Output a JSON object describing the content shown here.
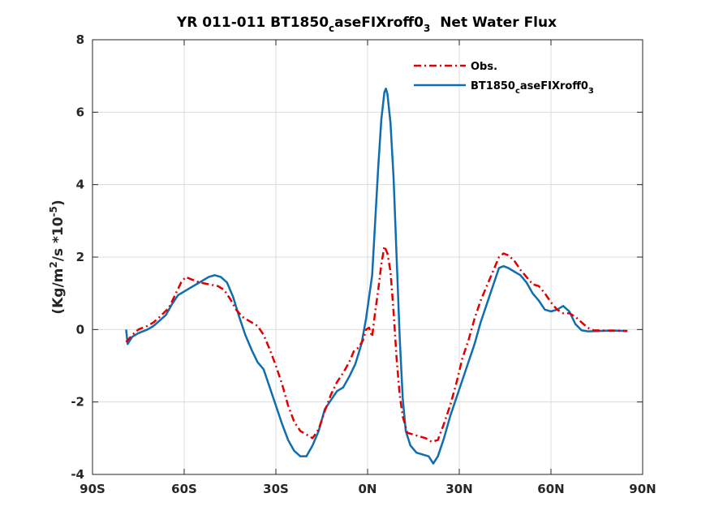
{
  "chart_data": {
    "type": "line",
    "title": {
      "prefix": "YR 011-011 BT1850",
      "sub1": "c",
      "mid": "aseFIXroff0",
      "sub2": "3",
      "suffix": "  Net Water Flux"
    },
    "xlabel": "",
    "ylabel": {
      "p1": "(Kg/m",
      "sup1": "2",
      "p2": "/s *10",
      "sup2": "-5",
      "p3": ")"
    },
    "xlim": [
      -90,
      90
    ],
    "ylim": [
      -4,
      8
    ],
    "x_ticks": [
      -90,
      -60,
      -30,
      0,
      30,
      60,
      90
    ],
    "x_tick_labels": [
      "90S",
      "60S",
      "30S",
      "0N",
      "30N",
      "60N",
      "90N"
    ],
    "y_ticks": [
      -4,
      -2,
      0,
      2,
      4,
      6,
      8
    ],
    "y_tick_labels": [
      "-4",
      "-2",
      "0",
      "2",
      "4",
      "6",
      "8"
    ],
    "grid": true,
    "legend_position": "top-right",
    "colors": {
      "obs": "#e00000",
      "model": "#0f6db0",
      "axis": "#262626",
      "grid": "#dcdcdc"
    },
    "series": [
      {
        "name": "Obs.",
        "style": "dashdot",
        "points": [
          [
            -79,
            -0.35
          ],
          [
            -77,
            -0.15
          ],
          [
            -75,
            0.0
          ],
          [
            -72,
            0.1
          ],
          [
            -70,
            0.2
          ],
          [
            -68,
            0.35
          ],
          [
            -65,
            0.6
          ],
          [
            -63,
            0.95
          ],
          [
            -61,
            1.3
          ],
          [
            -59.5,
            1.45
          ],
          [
            -57.5,
            1.38
          ],
          [
            -55,
            1.3
          ],
          [
            -52,
            1.25
          ],
          [
            -49,
            1.2
          ],
          [
            -47,
            1.1
          ],
          [
            -45,
            0.85
          ],
          [
            -43,
            0.55
          ],
          [
            -41,
            0.35
          ],
          [
            -39,
            0.25
          ],
          [
            -36,
            0.1
          ],
          [
            -34,
            -0.15
          ],
          [
            -32,
            -0.55
          ],
          [
            -30,
            -1.0
          ],
          [
            -28,
            -1.5
          ],
          [
            -26,
            -2.1
          ],
          [
            -24,
            -2.55
          ],
          [
            -22,
            -2.8
          ],
          [
            -20,
            -2.9
          ],
          [
            -18,
            -3.0
          ],
          [
            -16,
            -2.75
          ],
          [
            -14,
            -2.25
          ],
          [
            -12,
            -1.8
          ],
          [
            -10,
            -1.45
          ],
          [
            -8,
            -1.2
          ],
          [
            -6,
            -0.9
          ],
          [
            -4.5,
            -0.6
          ],
          [
            -3,
            -0.5
          ],
          [
            -1.5,
            -0.3
          ],
          [
            -0.5,
            0.0
          ],
          [
            0.5,
            0.05
          ],
          [
            1.5,
            -0.2
          ],
          [
            2.5,
            0.5
          ],
          [
            3.5,
            1.1
          ],
          [
            4.5,
            1.8
          ],
          [
            5.5,
            2.3
          ],
          [
            6.5,
            2.1
          ],
          [
            7.5,
            1.6
          ],
          [
            8.5,
            0.5
          ],
          [
            9.5,
            -0.8
          ],
          [
            10.5,
            -1.8
          ],
          [
            11.5,
            -2.4
          ],
          [
            13,
            -2.85
          ],
          [
            15,
            -2.9
          ],
          [
            17,
            -2.95
          ],
          [
            19,
            -3.0
          ],
          [
            21,
            -3.1
          ],
          [
            23,
            -3.05
          ],
          [
            25,
            -2.6
          ],
          [
            27,
            -2.1
          ],
          [
            29,
            -1.5
          ],
          [
            31,
            -0.8
          ],
          [
            33,
            -0.3
          ],
          [
            35,
            0.3
          ],
          [
            37,
            0.8
          ],
          [
            39,
            1.2
          ],
          [
            41,
            1.6
          ],
          [
            43,
            2.0
          ],
          [
            44.5,
            2.1
          ],
          [
            46,
            2.05
          ],
          [
            48,
            1.9
          ],
          [
            50,
            1.65
          ],
          [
            52,
            1.45
          ],
          [
            54,
            1.25
          ],
          [
            56,
            1.2
          ],
          [
            58,
            1.0
          ],
          [
            60,
            0.75
          ],
          [
            62,
            0.55
          ],
          [
            64,
            0.45
          ],
          [
            66,
            0.45
          ],
          [
            68,
            0.35
          ],
          [
            70,
            0.2
          ],
          [
            72,
            0.05
          ],
          [
            74,
            -0.02
          ],
          [
            78,
            -0.03
          ],
          [
            82,
            -0.03
          ],
          [
            85,
            -0.04
          ]
        ]
      },
      {
        "name": "BT1850",
        "name_sub1": "c",
        "name_mid": "aseFIXroff0",
        "name_sub2": "3",
        "style": "solid",
        "points": [
          [
            -79,
            0.0
          ],
          [
            -78.5,
            -0.4
          ],
          [
            -77,
            -0.2
          ],
          [
            -75,
            -0.1
          ],
          [
            -72,
            0.0
          ],
          [
            -70,
            0.1
          ],
          [
            -68,
            0.25
          ],
          [
            -66,
            0.4
          ],
          [
            -64,
            0.7
          ],
          [
            -62,
            0.95
          ],
          [
            -60,
            1.05
          ],
          [
            -58,
            1.15
          ],
          [
            -56,
            1.25
          ],
          [
            -54,
            1.35
          ],
          [
            -52,
            1.45
          ],
          [
            -50,
            1.5
          ],
          [
            -48,
            1.45
          ],
          [
            -46,
            1.3
          ],
          [
            -44,
            0.9
          ],
          [
            -42,
            0.35
          ],
          [
            -40,
            -0.15
          ],
          [
            -38,
            -0.55
          ],
          [
            -36,
            -0.9
          ],
          [
            -34,
            -1.1
          ],
          [
            -32,
            -1.6
          ],
          [
            -30,
            -2.1
          ],
          [
            -28,
            -2.6
          ],
          [
            -26,
            -3.05
          ],
          [
            -24,
            -3.35
          ],
          [
            -22,
            -3.5
          ],
          [
            -20,
            -3.5
          ],
          [
            -18,
            -3.2
          ],
          [
            -16,
            -2.8
          ],
          [
            -14,
            -2.2
          ],
          [
            -12,
            -1.95
          ],
          [
            -10,
            -1.7
          ],
          [
            -8,
            -1.6
          ],
          [
            -6,
            -1.3
          ],
          [
            -4,
            -0.95
          ],
          [
            -2,
            -0.4
          ],
          [
            -0.5,
            0.3
          ],
          [
            0.5,
            0.9
          ],
          [
            1.5,
            1.5
          ],
          [
            2.5,
            3.0
          ],
          [
            3.5,
            4.5
          ],
          [
            4.5,
            5.8
          ],
          [
            5.5,
            6.55
          ],
          [
            6,
            6.65
          ],
          [
            6.5,
            6.5
          ],
          [
            7.5,
            5.7
          ],
          [
            8.5,
            4.2
          ],
          [
            9.5,
            2.0
          ],
          [
            10.5,
            -0.2
          ],
          [
            11.5,
            -1.9
          ],
          [
            12.5,
            -2.8
          ],
          [
            14,
            -3.2
          ],
          [
            16,
            -3.4
          ],
          [
            18,
            -3.45
          ],
          [
            20,
            -3.5
          ],
          [
            21.5,
            -3.7
          ],
          [
            23,
            -3.5
          ],
          [
            25,
            -3.0
          ],
          [
            27,
            -2.4
          ],
          [
            29,
            -1.9
          ],
          [
            31,
            -1.4
          ],
          [
            33,
            -0.9
          ],
          [
            35,
            -0.4
          ],
          [
            37,
            0.2
          ],
          [
            39,
            0.7
          ],
          [
            41,
            1.2
          ],
          [
            43,
            1.7
          ],
          [
            44.5,
            1.75
          ],
          [
            46,
            1.7
          ],
          [
            48,
            1.6
          ],
          [
            50,
            1.5
          ],
          [
            52,
            1.3
          ],
          [
            54,
            1.0
          ],
          [
            56,
            0.8
          ],
          [
            58,
            0.55
          ],
          [
            60,
            0.5
          ],
          [
            62,
            0.55
          ],
          [
            64,
            0.65
          ],
          [
            66,
            0.5
          ],
          [
            68,
            0.15
          ],
          [
            70,
            -0.02
          ],
          [
            72,
            -0.05
          ],
          [
            76,
            -0.04
          ],
          [
            80,
            -0.03
          ],
          [
            85,
            -0.04
          ]
        ]
      }
    ]
  }
}
